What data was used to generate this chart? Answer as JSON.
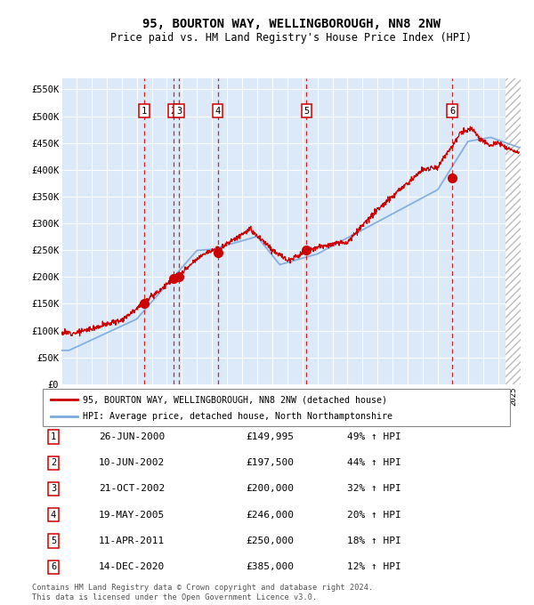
{
  "title": "95, BOURTON WAY, WELLINGBOROUGH, NN8 2NW",
  "subtitle": "Price paid vs. HM Land Registry's House Price Index (HPI)",
  "legend_label_red": "95, BOURTON WAY, WELLINGBOROUGH, NN8 2NW (detached house)",
  "legend_label_blue": "HPI: Average price, detached house, North Northamptonshire",
  "footer1": "Contains HM Land Registry data © Crown copyright and database right 2024.",
  "footer2": "This data is licensed under the Open Government Licence v3.0.",
  "yticks": [
    0,
    50000,
    100000,
    150000,
    200000,
    250000,
    300000,
    350000,
    400000,
    450000,
    500000,
    550000
  ],
  "ytick_labels": [
    "£0",
    "£50K",
    "£100K",
    "£150K",
    "£200K",
    "£250K",
    "£300K",
    "£350K",
    "£400K",
    "£450K",
    "£500K",
    "£550K"
  ],
  "xmin": 1995.0,
  "xmax": 2025.5,
  "ymin": 0,
  "ymax": 570000,
  "transactions": [
    {
      "num": 1,
      "date_label": "26-JUN-2000",
      "price": 149995,
      "hpi_pct": "49% ↑ HPI",
      "x": 2000.486
    },
    {
      "num": 2,
      "date_label": "10-JUN-2002",
      "price": 197500,
      "hpi_pct": "44% ↑ HPI",
      "x": 2002.44
    },
    {
      "num": 3,
      "date_label": "21-OCT-2002",
      "price": 200000,
      "hpi_pct": "32% ↑ HPI",
      "x": 2002.81
    },
    {
      "num": 4,
      "date_label": "19-MAY-2005",
      "price": 246000,
      "hpi_pct": "20% ↑ HPI",
      "x": 2005.38
    },
    {
      "num": 5,
      "date_label": "11-APR-2011",
      "price": 250000,
      "hpi_pct": "18% ↑ HPI",
      "x": 2011.28
    },
    {
      "num": 6,
      "date_label": "14-DEC-2020",
      "price": 385000,
      "hpi_pct": "12% ↑ HPI",
      "x": 2020.95
    }
  ],
  "bg_color": "#dce9f8",
  "grid_color": "#ffffff",
  "red_line_color": "#cc0000",
  "blue_line_color": "#7aaadd",
  "dot_color": "#cc0000",
  "dashed_line_color": "#cc0000",
  "box_edge_color": "#cc0000"
}
